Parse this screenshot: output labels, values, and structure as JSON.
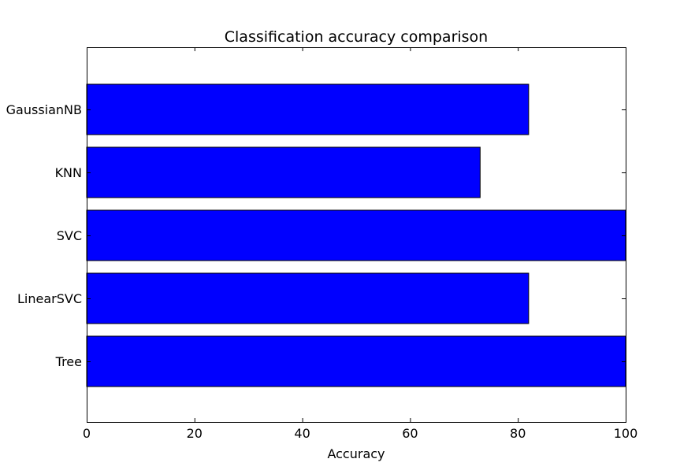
{
  "chart_data": {
    "type": "bar",
    "orientation": "horizontal",
    "title": "Classification accuracy comparison",
    "xlabel": "Accuracy",
    "ylabel": "",
    "categories": [
      "GaussianNB",
      "KNN",
      "SVC",
      "LinearSVC",
      "Tree"
    ],
    "values": [
      82,
      73,
      100,
      82,
      100
    ],
    "xlim": [
      0,
      100
    ],
    "xticks": [
      0,
      20,
      40,
      60,
      80,
      100
    ],
    "grid": false,
    "legend": "none",
    "colors": {
      "bar_fill": "#0000ff",
      "bar_edge": "#000000",
      "axes_edge": "#000000",
      "background": "#ffffff"
    }
  }
}
